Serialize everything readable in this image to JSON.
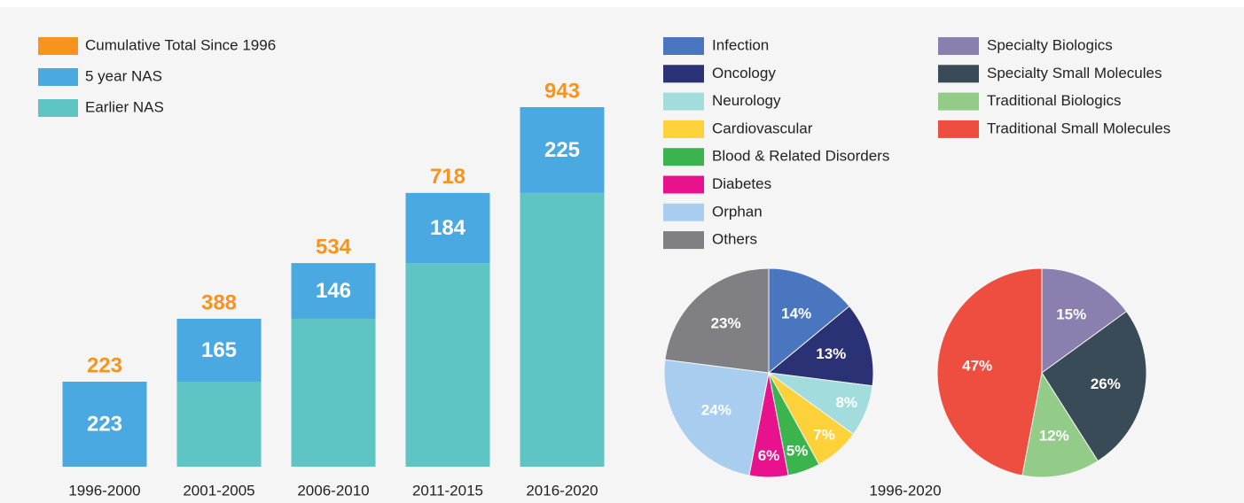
{
  "chart_data": [
    {
      "type": "bar",
      "categories": [
        "1996-2000",
        "2001-2005",
        "2006-2010",
        "2011-2015",
        "2016-2020"
      ],
      "totals": {
        "name": "Cumulative Total Since 1996",
        "color": "#f7941d",
        "values": [
          223,
          388,
          534,
          718,
          943
        ]
      },
      "series": [
        {
          "name": "5 year NAS",
          "color": "#4aa9e0",
          "values": [
            223,
            165,
            146,
            184,
            225
          ]
        },
        {
          "name": "Earlier NAS",
          "color": "#5ec4c4",
          "values": [
            0,
            223,
            388,
            534,
            718
          ]
        }
      ]
    },
    {
      "type": "pie",
      "xlabel": "1996-2020",
      "categories": [
        "Infection",
        "Oncology",
        "Neurology",
        "Cardiovascular",
        "Blood & Related Disorders",
        "Diabetes",
        "Orphan",
        "Others"
      ],
      "values": [
        14,
        13,
        8,
        7,
        5,
        6,
        24,
        23
      ],
      "value_labels": [
        "14%",
        "13%",
        "8%",
        "7%",
        "5%",
        "6%",
        "24%",
        "23%"
      ],
      "colors": [
        "#4a76bf",
        "#2b3175",
        "#a3dcdc",
        "#fdd13a",
        "#3cb44e",
        "#e8128c",
        "#a9cdee",
        "#808084"
      ]
    },
    {
      "type": "pie",
      "categories": [
        "Specialty Biologics",
        "Specialty Small Molecules",
        "Traditional Biologics",
        "Traditional Small Molecules"
      ],
      "values": [
        15,
        26,
        12,
        47
      ],
      "value_labels": [
        "15%",
        "26%",
        "12%",
        "47%"
      ],
      "colors": [
        "#8a7fae",
        "#384b57",
        "#92cc88",
        "#ee4e3f"
      ]
    }
  ]
}
